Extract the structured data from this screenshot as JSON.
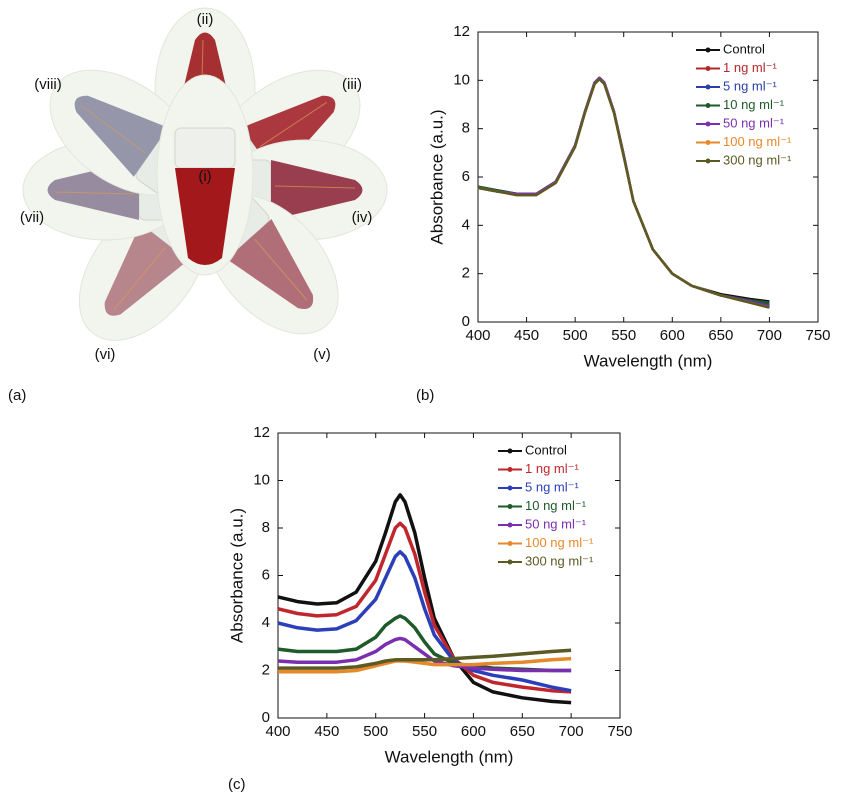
{
  "panel_labels": [
    "(a)",
    "(b)",
    "(c)"
  ],
  "tube_labels": [
    "(i)",
    "(ii)",
    "(iii)",
    "(iv)",
    "(v)",
    "(vi)",
    "(vii)",
    "(viii)"
  ],
  "chart_data": [
    {
      "type": "line",
      "xlabel": "Wavelength (nm)",
      "ylabel": "Absorbance (a.u.)",
      "xlim": [
        400,
        750
      ],
      "xticks": [
        400,
        450,
        500,
        550,
        600,
        650,
        700,
        750
      ],
      "ylim": [
        0,
        12
      ],
      "yticks": [
        0,
        2,
        4,
        6,
        8,
        10,
        12
      ],
      "x": [
        400,
        420,
        440,
        460,
        480,
        500,
        510,
        520,
        525,
        530,
        540,
        550,
        560,
        580,
        600,
        620,
        650,
        680,
        700
      ],
      "series": [
        {
          "name": "Control",
          "color": "#111111",
          "values": [
            5.6,
            5.45,
            5.3,
            5.3,
            5.8,
            7.3,
            8.7,
            9.9,
            10.1,
            9.9,
            8.7,
            6.9,
            5.0,
            3.0,
            2.0,
            1.5,
            1.15,
            0.95,
            0.85
          ]
        },
        {
          "name": "1 ng ml⁻¹",
          "color": "#b5272d",
          "values": [
            5.55,
            5.4,
            5.3,
            5.3,
            5.8,
            7.3,
            8.7,
            9.9,
            10.1,
            9.9,
            8.7,
            6.9,
            5.0,
            3.0,
            2.0,
            1.5,
            1.1,
            0.9,
            0.75
          ]
        },
        {
          "name": "5 ng ml⁻¹",
          "color": "#2b3fa8",
          "values": [
            5.55,
            5.4,
            5.3,
            5.3,
            5.8,
            7.3,
            8.7,
            9.9,
            10.1,
            9.9,
            8.7,
            6.9,
            5.0,
            3.0,
            2.0,
            1.5,
            1.1,
            0.9,
            0.7
          ]
        },
        {
          "name": "10 ng ml⁻¹",
          "color": "#1f5a2a",
          "values": [
            5.6,
            5.45,
            5.3,
            5.3,
            5.8,
            7.3,
            8.7,
            9.9,
            10.1,
            9.9,
            8.7,
            6.9,
            5.0,
            3.0,
            2.0,
            1.5,
            1.1,
            0.9,
            0.8
          ]
        },
        {
          "name": "50 ng ml⁻¹",
          "color": "#7a2fb0",
          "values": [
            5.55,
            5.4,
            5.3,
            5.3,
            5.8,
            7.3,
            8.7,
            9.9,
            10.1,
            9.9,
            8.7,
            6.9,
            5.0,
            3.0,
            2.0,
            1.5,
            1.1,
            0.85,
            0.65
          ]
        },
        {
          "name": "100 ng ml⁻¹",
          "color": "#e6892b",
          "values": [
            5.55,
            5.4,
            5.25,
            5.25,
            5.75,
            7.25,
            8.65,
            9.85,
            10.05,
            9.85,
            8.65,
            6.85,
            5.0,
            3.0,
            2.0,
            1.5,
            1.1,
            0.8,
            0.6
          ]
        },
        {
          "name": "300 ng ml⁻¹",
          "color": "#5c5a24",
          "values": [
            5.55,
            5.4,
            5.25,
            5.25,
            5.75,
            7.25,
            8.65,
            9.85,
            10.05,
            9.85,
            8.65,
            6.85,
            5.0,
            3.0,
            2.0,
            1.5,
            1.1,
            0.8,
            0.6
          ]
        }
      ]
    },
    {
      "type": "line",
      "xlabel": "Wavelength (nm)",
      "ylabel": "Absorbance (a.u.)",
      "xlim": [
        400,
        750
      ],
      "xticks": [
        400,
        450,
        500,
        550,
        600,
        650,
        700,
        750
      ],
      "ylim": [
        0,
        12
      ],
      "yticks": [
        0,
        2,
        4,
        6,
        8,
        10,
        12
      ],
      "x": [
        400,
        420,
        440,
        460,
        480,
        500,
        510,
        520,
        525,
        530,
        540,
        550,
        560,
        580,
        600,
        620,
        650,
        680,
        700
      ],
      "series": [
        {
          "name": "Control",
          "color": "#111111",
          "values": [
            5.1,
            4.9,
            4.8,
            4.85,
            5.3,
            6.6,
            7.8,
            9.1,
            9.4,
            9.1,
            7.8,
            5.9,
            4.2,
            2.5,
            1.5,
            1.1,
            0.85,
            0.7,
            0.65
          ]
        },
        {
          "name": "1 ng ml⁻¹",
          "color": "#c0272d",
          "values": [
            4.6,
            4.4,
            4.3,
            4.35,
            4.7,
            5.8,
            6.9,
            8.0,
            8.2,
            8.0,
            6.9,
            5.3,
            3.9,
            2.5,
            1.8,
            1.5,
            1.3,
            1.15,
            1.1
          ]
        },
        {
          "name": "5 ng ml⁻¹",
          "color": "#2b3fb8",
          "values": [
            4.0,
            3.8,
            3.7,
            3.75,
            4.1,
            5.0,
            5.9,
            6.8,
            7.0,
            6.8,
            5.9,
            4.6,
            3.5,
            2.4,
            2.0,
            1.8,
            1.6,
            1.3,
            1.15
          ]
        },
        {
          "name": "10 ng ml⁻¹",
          "color": "#1f5a2a",
          "values": [
            2.9,
            2.8,
            2.8,
            2.8,
            2.9,
            3.4,
            3.9,
            4.2,
            4.3,
            4.2,
            3.8,
            3.2,
            2.7,
            2.3,
            2.2,
            2.1,
            2.05,
            2.0,
            2.0
          ]
        },
        {
          "name": "50 ng ml⁻¹",
          "color": "#7a2fb0",
          "values": [
            2.4,
            2.35,
            2.35,
            2.35,
            2.45,
            2.8,
            3.1,
            3.3,
            3.35,
            3.3,
            3.0,
            2.7,
            2.4,
            2.2,
            2.1,
            2.05,
            2.0,
            2.0,
            2.0
          ]
        },
        {
          "name": "100 ng ml⁻¹",
          "color": "#e6892b",
          "values": [
            1.95,
            1.95,
            1.95,
            1.95,
            2.0,
            2.2,
            2.3,
            2.4,
            2.4,
            2.4,
            2.35,
            2.3,
            2.25,
            2.25,
            2.25,
            2.3,
            2.35,
            2.45,
            2.5
          ]
        },
        {
          "name": "300 ng ml⁻¹",
          "color": "#5c5a24",
          "values": [
            2.1,
            2.1,
            2.1,
            2.1,
            2.15,
            2.3,
            2.4,
            2.45,
            2.45,
            2.45,
            2.45,
            2.45,
            2.45,
            2.5,
            2.55,
            2.6,
            2.7,
            2.8,
            2.85
          ]
        }
      ]
    }
  ]
}
